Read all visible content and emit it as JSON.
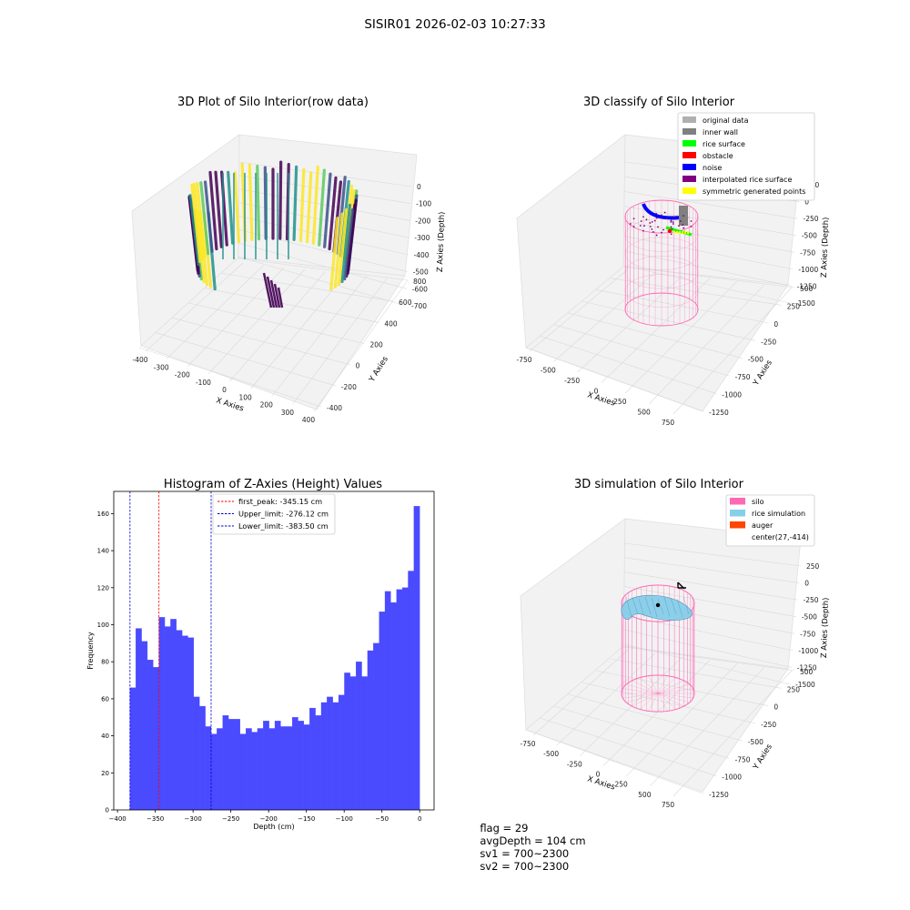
{
  "suptitle": "SISIR01 2026-02-03 10:27:33",
  "colors": {
    "hist_bar": "#4a4aff",
    "peak_line": "#ff0000",
    "limit_line": "#0000cc",
    "silo": "#ff69b4",
    "rice_sim": "#87ceeb",
    "auger": "#ff4500",
    "viridis_low": "#440154",
    "viridis_mid": "#21918c",
    "viridis_high": "#fde725"
  },
  "chart_data": [
    {
      "type": "scatter3d",
      "title": "3D Plot of Silo Interior(row data)",
      "xlabel": "X Axies",
      "ylabel": "Y Axies",
      "zlabel": "Z Axies (Depth)",
      "xticks": [
        "-400",
        "-300",
        "-200",
        "-100",
        "0",
        "100",
        "200",
        "300",
        "400"
      ],
      "yticks": [
        "-400",
        "-200",
        "0",
        "200",
        "400",
        "600",
        "800"
      ],
      "zticks": [
        "0",
        "-100",
        "-200",
        "-300",
        "-400",
        "-500",
        "-600",
        "-700"
      ],
      "colormap": "viridis"
    },
    {
      "type": "scatter3d",
      "title": "3D classify of Silo Interior",
      "xlabel": "X Axies",
      "ylabel": "Y Axies",
      "zlabel": "Z Axies (Depth)",
      "xticks": [
        "-750",
        "-500",
        "-250",
        "0",
        "250",
        "500",
        "750"
      ],
      "yticks": [
        "-1250",
        "-1000",
        "-750",
        "-500",
        "-250",
        "0",
        "250",
        "500"
      ],
      "zticks": [
        "250",
        "0",
        "-250",
        "-500",
        "-750",
        "-1000",
        "-1250",
        "-1500"
      ],
      "legend_position": "top-right",
      "legend": [
        {
          "label": "original data",
          "color": "#b0b0b0"
        },
        {
          "label": "inner wall",
          "color": "#808080"
        },
        {
          "label": "rice surface",
          "color": "#00ff00"
        },
        {
          "label": "obstacle",
          "color": "#ff0000"
        },
        {
          "label": "noise",
          "color": "#0000ff"
        },
        {
          "label": "interpolated rice surface",
          "color": "#800080"
        },
        {
          "label": "symmetric generated points",
          "color": "#ffff00"
        }
      ]
    },
    {
      "type": "bar",
      "title": "Histogram of Z-Axies (Height) Values",
      "xlabel": "Depth (cm)",
      "ylabel": "Frequency",
      "xlim": [
        -405,
        19
      ],
      "ylim": [
        0,
        172
      ],
      "xticks": [
        -400,
        -350,
        -300,
        -250,
        -200,
        -150,
        -100,
        -50,
        0
      ],
      "yticks": [
        0,
        20,
        40,
        60,
        80,
        100,
        120,
        140,
        160
      ],
      "bin_start": -383.5,
      "bin_width": 7.67,
      "values": [
        66,
        98,
        91,
        81,
        77,
        104,
        99,
        103,
        97,
        94,
        93,
        61,
        56,
        45,
        41,
        44,
        51,
        49,
        49,
        41,
        44,
        42,
        44,
        48,
        44,
        48,
        45,
        45,
        50,
        48,
        46,
        55,
        51,
        58,
        61,
        58,
        62,
        74,
        72,
        80,
        72,
        86,
        90,
        107,
        118,
        112,
        119,
        120,
        129,
        164
      ],
      "vlines": [
        {
          "label": "first_peak: -345.15 cm",
          "x": -345.15,
          "color": "#ff0000"
        },
        {
          "label": "Upper_limit: -276.12 cm",
          "x": -276.12,
          "color": "#0000cc"
        },
        {
          "label": "Lower_limit: -383.50 cm",
          "x": -383.5,
          "color": "#0000cc"
        }
      ],
      "legend_position": "top-center"
    },
    {
      "type": "surface3d",
      "title": "3D simulation of Silo Interior",
      "xlabel": "X Axies",
      "ylabel": "Y Axies",
      "zlabel": "Z Axies (Depth)",
      "xticks": [
        "-750",
        "-500",
        "-250",
        "0",
        "250",
        "500",
        "750"
      ],
      "yticks": [
        "-1250",
        "-1000",
        "-750",
        "-500",
        "-250",
        "0",
        "250",
        "500"
      ],
      "zticks": [
        "250",
        "0",
        "-250",
        "-500",
        "-750",
        "-1000",
        "-1250",
        "-1500"
      ],
      "legend_position": "top-right",
      "legend": [
        {
          "label": "silo",
          "color": "#ff69b4"
        },
        {
          "label": "rice simulation",
          "color": "#87ceeb"
        },
        {
          "label": "auger",
          "color": "#ff4500"
        },
        {
          "label": "center(27,-414)",
          "color": ""
        }
      ]
    }
  ],
  "footer": {
    "flag": "flag = 29",
    "avg": "avgDepth = 104 cm",
    "sv1": "sv1 = 700~2300",
    "sv2": "sv2 = 700~2300"
  }
}
